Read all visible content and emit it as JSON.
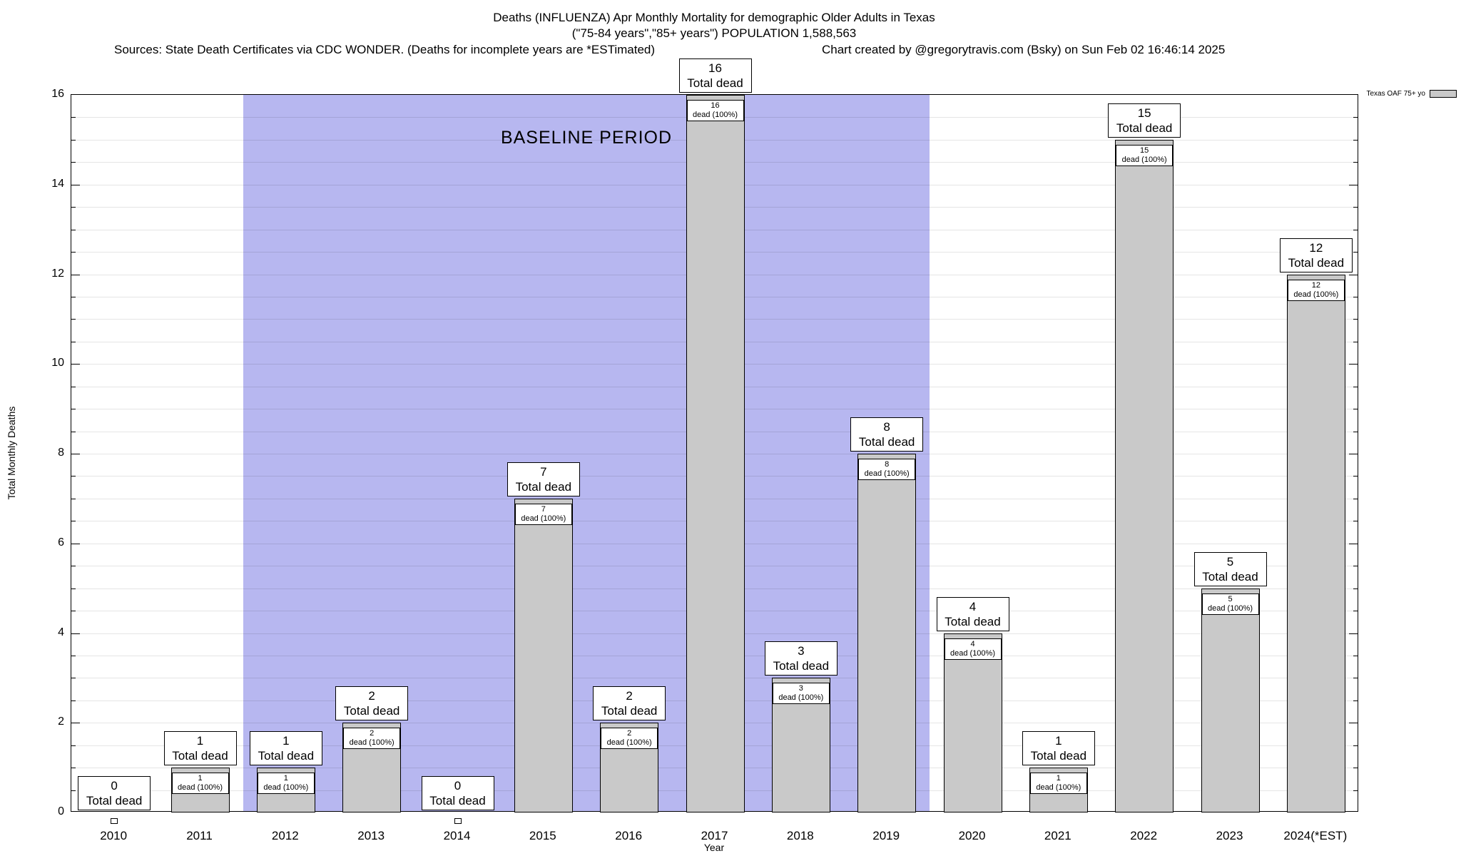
{
  "header": {
    "title_line1": "Deaths (INFLUENZA) Apr Monthly Mortality for demographic Older Adults in Texas",
    "title_line2": "(\"75-84 years\",\"85+ years\") POPULATION 1,588,563",
    "sources": "Sources: State Death Certificates via CDC WONDER. (Deaths for incomplete years are *ESTimated)",
    "credit": "Chart created by @gregorytravis.com (Bsky) on Sun Feb 02 16:46:14 2025"
  },
  "chart_data": {
    "type": "bar",
    "title": "Deaths (INFLUENZA) Apr Monthly Mortality for demographic Older Adults in Texas",
    "subtitle": "(\"75-84 years\",\"85+ years\") POPULATION 1,588,563",
    "xlabel": "Year",
    "ylabel": "Total Monthly Deaths",
    "ylim": [
      0,
      16
    ],
    "ytick_interval": 2,
    "minor_grid_interval": 0.5,
    "grid": "horizontal minor gridlines on",
    "categories": [
      "2010",
      "2011",
      "2012",
      "2013",
      "2014",
      "2015",
      "2016",
      "2017",
      "2018",
      "2019",
      "2020",
      "2021",
      "2022",
      "2023",
      "2024(*EST)"
    ],
    "values": [
      0,
      1,
      1,
      2,
      0,
      7,
      2,
      16,
      3,
      8,
      4,
      1,
      15,
      5,
      12
    ],
    "total_label": "Total dead",
    "inner_label": "dead (100%)",
    "baseline_region": {
      "label": "BASELINE PERIOD",
      "start_category": "2012",
      "end_category": "2019",
      "color": "#b7b7f0"
    },
    "legend": {
      "label": "Texas OAF 75+ yo",
      "swatch_color": "#c9c9c9",
      "position": "top-right"
    },
    "bar_color": "#c9c9c9",
    "bar_border_color": "#000000"
  }
}
